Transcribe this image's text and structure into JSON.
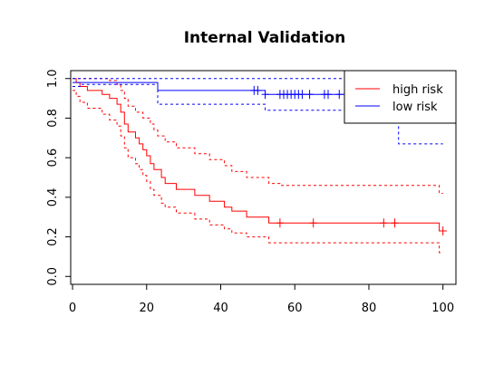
{
  "chart_data": {
    "type": "line",
    "title": "Internal Validation",
    "xlabel": "",
    "ylabel": "",
    "xlim": [
      -0.5,
      103.5
    ],
    "ylim": [
      -0.04,
      1.04
    ],
    "x_ticks": [
      0,
      20,
      40,
      60,
      80,
      100
    ],
    "y_ticks": [
      0.0,
      0.2,
      0.4,
      0.6,
      0.8,
      1.0
    ],
    "x_tick_labels": [
      "0",
      "20",
      "40",
      "60",
      "80",
      "100"
    ],
    "y_tick_labels": [
      "0.0",
      "0.2",
      "0.4",
      "0.6",
      "0.8",
      "1.0"
    ],
    "grid": false,
    "legend_position": "top-right",
    "series": [
      {
        "name": "high risk",
        "color": "#ff0000",
        "steps": [
          [
            0,
            1.0
          ],
          [
            1,
            0.98
          ],
          [
            2,
            0.96
          ],
          [
            4,
            0.94
          ],
          [
            8,
            0.92
          ],
          [
            10,
            0.9
          ],
          [
            12,
            0.87
          ],
          [
            13,
            0.83
          ],
          [
            14,
            0.77
          ],
          [
            15,
            0.73
          ],
          [
            17,
            0.7
          ],
          [
            18,
            0.67
          ],
          [
            19,
            0.64
          ],
          [
            20,
            0.61
          ],
          [
            21,
            0.57
          ],
          [
            22,
            0.54
          ],
          [
            24,
            0.5
          ],
          [
            25,
            0.47
          ],
          [
            28,
            0.44
          ],
          [
            33,
            0.41
          ],
          [
            37,
            0.38
          ],
          [
            41,
            0.35
          ],
          [
            43,
            0.33
          ],
          [
            47,
            0.3
          ],
          [
            53,
            0.27
          ],
          [
            99,
            0.23
          ],
          [
            101,
            0.23
          ]
        ],
        "censor_x": [
          56,
          65,
          84,
          87,
          100
        ]
      },
      {
        "name": "high risk upper CI",
        "color": "#ff0000",
        "dashed": true,
        "steps": [
          [
            0,
            1.0
          ],
          [
            10,
            0.99
          ],
          [
            12,
            0.97
          ],
          [
            13,
            0.94
          ],
          [
            14,
            0.9
          ],
          [
            15,
            0.86
          ],
          [
            17,
            0.83
          ],
          [
            19,
            0.8
          ],
          [
            21,
            0.77
          ],
          [
            22,
            0.74
          ],
          [
            23,
            0.71
          ],
          [
            25,
            0.68
          ],
          [
            28,
            0.65
          ],
          [
            33,
            0.62
          ],
          [
            37,
            0.59
          ],
          [
            41,
            0.56
          ],
          [
            43,
            0.53
          ],
          [
            47,
            0.5
          ],
          [
            53,
            0.47
          ],
          [
            56,
            0.46
          ],
          [
            99,
            0.42
          ],
          [
            100,
            0.42
          ]
        ]
      },
      {
        "name": "high risk lower CI",
        "color": "#ff0000",
        "dashed": true,
        "steps": [
          [
            0,
            0.94
          ],
          [
            1,
            0.91
          ],
          [
            2,
            0.88
          ],
          [
            4,
            0.85
          ],
          [
            8,
            0.82
          ],
          [
            10,
            0.79
          ],
          [
            12,
            0.76
          ],
          [
            13,
            0.71
          ],
          [
            14,
            0.65
          ],
          [
            15,
            0.6
          ],
          [
            17,
            0.57
          ],
          [
            18,
            0.54
          ],
          [
            19,
            0.51
          ],
          [
            20,
            0.48
          ],
          [
            21,
            0.44
          ],
          [
            22,
            0.41
          ],
          [
            24,
            0.37
          ],
          [
            25,
            0.35
          ],
          [
            28,
            0.32
          ],
          [
            33,
            0.29
          ],
          [
            37,
            0.26
          ],
          [
            41,
            0.24
          ],
          [
            43,
            0.22
          ],
          [
            47,
            0.2
          ],
          [
            53,
            0.17
          ],
          [
            99,
            0.12
          ],
          [
            100,
            0.12
          ]
        ]
      },
      {
        "name": "low risk",
        "color": "#0000ff",
        "steps": [
          [
            0,
            0.98
          ],
          [
            23,
            0.94
          ],
          [
            52,
            0.92
          ],
          [
            101,
            0.92
          ]
        ],
        "censor_x": [
          49,
          50,
          52,
          56,
          57,
          58,
          59,
          60,
          61,
          62,
          64,
          68,
          69,
          72
        ]
      },
      {
        "name": "low risk upper CI",
        "color": "#0000ff",
        "dashed": true,
        "steps": [
          [
            0,
            1.0
          ],
          [
            101,
            1.0
          ]
        ]
      },
      {
        "name": "low risk lower CI",
        "color": "#0000ff",
        "dashed": true,
        "steps": [
          [
            0,
            0.96
          ],
          [
            2,
            0.97
          ],
          [
            23,
            0.87
          ],
          [
            52,
            0.84
          ],
          [
            85,
            0.78
          ],
          [
            88,
            0.67
          ],
          [
            100,
            0.67
          ]
        ]
      }
    ],
    "legend": {
      "entries": [
        {
          "label": "high risk",
          "color": "#ff0000"
        },
        {
          "label": "low risk",
          "color": "#0000ff"
        }
      ]
    }
  }
}
